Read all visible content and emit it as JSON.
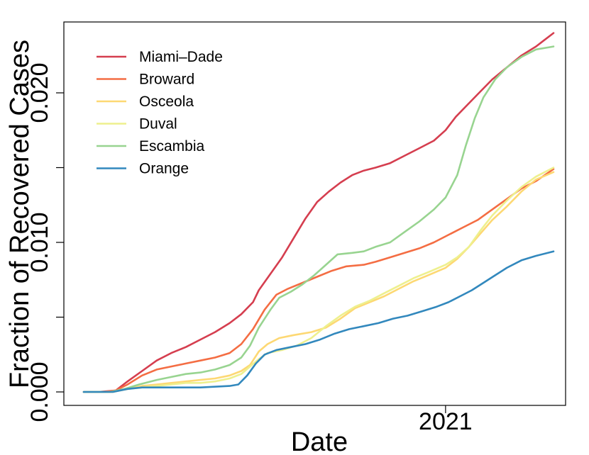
{
  "chart_data": {
    "type": "line",
    "xlabel": "Date",
    "ylabel": "Fraction of Recovered Cases",
    "x_tick_labels": [
      "2021"
    ],
    "y_tick_labels": [
      "0.000",
      "0.010",
      "0.020"
    ],
    "y_ticks": [
      0,
      0.005,
      0.01,
      0.015,
      0.02
    ],
    "x_axis_range_days": [
      0,
      322
    ],
    "x_2021_position_days": 248,
    "ylim": [
      -0.0009,
      0.0247
    ],
    "grid": false,
    "legend_position": "top-left",
    "series": [
      {
        "name": "Miami–Dade",
        "color": "#d53e4f",
        "points": [
          [
            0,
            0
          ],
          [
            10,
            0
          ],
          [
            22,
            0.0001
          ],
          [
            30,
            0.0007
          ],
          [
            40,
            0.0014
          ],
          [
            50,
            0.0021
          ],
          [
            60,
            0.0026
          ],
          [
            70,
            0.003
          ],
          [
            80,
            0.0035
          ],
          [
            90,
            0.004
          ],
          [
            100,
            0.0046
          ],
          [
            108,
            0.0052
          ],
          [
            116,
            0.006
          ],
          [
            120,
            0.0068
          ],
          [
            128,
            0.0079
          ],
          [
            136,
            0.009
          ],
          [
            144,
            0.0103
          ],
          [
            152,
            0.0116
          ],
          [
            160,
            0.0127
          ],
          [
            168,
            0.0134
          ],
          [
            176,
            0.014
          ],
          [
            184,
            0.0145
          ],
          [
            192,
            0.0148
          ],
          [
            200,
            0.015
          ],
          [
            210,
            0.0153
          ],
          [
            220,
            0.0158
          ],
          [
            230,
            0.0163
          ],
          [
            240,
            0.0168
          ],
          [
            248,
            0.0175
          ],
          [
            255,
            0.0184
          ],
          [
            263,
            0.0192
          ],
          [
            271,
            0.02
          ],
          [
            280,
            0.0209
          ],
          [
            290,
            0.0217
          ],
          [
            300,
            0.0225
          ],
          [
            310,
            0.0231
          ],
          [
            322,
            0.024
          ]
        ]
      },
      {
        "name": "Broward",
        "color": "#f46d43",
        "points": [
          [
            0,
            0
          ],
          [
            14,
            0
          ],
          [
            22,
            0.0001
          ],
          [
            30,
            0.0005
          ],
          [
            40,
            0.0011
          ],
          [
            50,
            0.0015
          ],
          [
            60,
            0.0017
          ],
          [
            70,
            0.0019
          ],
          [
            80,
            0.0021
          ],
          [
            90,
            0.0023
          ],
          [
            100,
            0.0026
          ],
          [
            108,
            0.0032
          ],
          [
            116,
            0.0042
          ],
          [
            124,
            0.0055
          ],
          [
            132,
            0.0065
          ],
          [
            140,
            0.0069
          ],
          [
            150,
            0.0073
          ],
          [
            160,
            0.0077
          ],
          [
            170,
            0.0081
          ],
          [
            180,
            0.0084
          ],
          [
            192,
            0.0085
          ],
          [
            200,
            0.0087
          ],
          [
            210,
            0.009
          ],
          [
            220,
            0.0093
          ],
          [
            230,
            0.0096
          ],
          [
            240,
            0.01
          ],
          [
            250,
            0.0105
          ],
          [
            260,
            0.011
          ],
          [
            270,
            0.0115
          ],
          [
            280,
            0.0122
          ],
          [
            290,
            0.0129
          ],
          [
            300,
            0.0136
          ],
          [
            310,
            0.0141
          ],
          [
            322,
            0.0149
          ]
        ]
      },
      {
        "name": "Osceola",
        "color": "#fdd873",
        "points": [
          [
            0,
            0
          ],
          [
            20,
            0
          ],
          [
            30,
            0.0002
          ],
          [
            40,
            0.0004
          ],
          [
            50,
            0.0005
          ],
          [
            60,
            0.0006
          ],
          [
            70,
            0.0007
          ],
          [
            80,
            0.0008
          ],
          [
            90,
            0.0009
          ],
          [
            100,
            0.0011
          ],
          [
            108,
            0.0014
          ],
          [
            114,
            0.0018
          ],
          [
            120,
            0.0027
          ],
          [
            126,
            0.0032
          ],
          [
            134,
            0.0036
          ],
          [
            144,
            0.0038
          ],
          [
            156,
            0.004
          ],
          [
            166,
            0.0043
          ],
          [
            176,
            0.0049
          ],
          [
            186,
            0.0056
          ],
          [
            196,
            0.006
          ],
          [
            206,
            0.0064
          ],
          [
            216,
            0.0069
          ],
          [
            226,
            0.0074
          ],
          [
            236,
            0.0078
          ],
          [
            248,
            0.0083
          ],
          [
            256,
            0.0089
          ],
          [
            264,
            0.0097
          ],
          [
            272,
            0.0106
          ],
          [
            280,
            0.0115
          ],
          [
            290,
            0.0124
          ],
          [
            300,
            0.0134
          ],
          [
            310,
            0.0142
          ],
          [
            322,
            0.0147
          ]
        ]
      },
      {
        "name": "Duval",
        "color": "#eef08e",
        "points": [
          [
            0,
            0
          ],
          [
            20,
            0
          ],
          [
            30,
            0.0002
          ],
          [
            40,
            0.0003
          ],
          [
            50,
            0.0004
          ],
          [
            60,
            0.0005
          ],
          [
            70,
            0.0006
          ],
          [
            80,
            0.0006
          ],
          [
            90,
            0.0007
          ],
          [
            100,
            0.0009
          ],
          [
            108,
            0.0012
          ],
          [
            114,
            0.0017
          ],
          [
            120,
            0.0022
          ],
          [
            126,
            0.0026
          ],
          [
            136,
            0.0028
          ],
          [
            146,
            0.0031
          ],
          [
            156,
            0.0036
          ],
          [
            166,
            0.0044
          ],
          [
            176,
            0.0051
          ],
          [
            186,
            0.0057
          ],
          [
            196,
            0.0061
          ],
          [
            206,
            0.0066
          ],
          [
            216,
            0.0071
          ],
          [
            226,
            0.0076
          ],
          [
            236,
            0.008
          ],
          [
            248,
            0.0085
          ],
          [
            256,
            0.009
          ],
          [
            264,
            0.0097
          ],
          [
            272,
            0.0108
          ],
          [
            280,
            0.0118
          ],
          [
            290,
            0.0128
          ],
          [
            300,
            0.0137
          ],
          [
            310,
            0.0144
          ],
          [
            322,
            0.015
          ]
        ]
      },
      {
        "name": "Escambia",
        "color": "#98d490",
        "points": [
          [
            0,
            0
          ],
          [
            18,
            0
          ],
          [
            28,
            0.0002
          ],
          [
            38,
            0.0005
          ],
          [
            50,
            0.0008
          ],
          [
            60,
            0.001
          ],
          [
            70,
            0.0012
          ],
          [
            80,
            0.0013
          ],
          [
            90,
            0.0015
          ],
          [
            100,
            0.0018
          ],
          [
            108,
            0.0023
          ],
          [
            114,
            0.0031
          ],
          [
            120,
            0.0043
          ],
          [
            128,
            0.0055
          ],
          [
            134,
            0.0063
          ],
          [
            142,
            0.0067
          ],
          [
            150,
            0.0072
          ],
          [
            158,
            0.0078
          ],
          [
            166,
            0.0085
          ],
          [
            174,
            0.0092
          ],
          [
            184,
            0.0093
          ],
          [
            192,
            0.0094
          ],
          [
            200,
            0.0097
          ],
          [
            210,
            0.01
          ],
          [
            220,
            0.0107
          ],
          [
            230,
            0.0114
          ],
          [
            240,
            0.0122
          ],
          [
            248,
            0.013
          ],
          [
            256,
            0.0145
          ],
          [
            262,
            0.0165
          ],
          [
            268,
            0.0183
          ],
          [
            274,
            0.0197
          ],
          [
            282,
            0.0209
          ],
          [
            290,
            0.0217
          ],
          [
            300,
            0.0224
          ],
          [
            310,
            0.0229
          ],
          [
            322,
            0.0231
          ]
        ]
      },
      {
        "name": "Orange",
        "color": "#3288bd",
        "points": [
          [
            0,
            0
          ],
          [
            20,
            0
          ],
          [
            30,
            0.0002
          ],
          [
            40,
            0.0003
          ],
          [
            60,
            0.0003
          ],
          [
            80,
            0.0003
          ],
          [
            100,
            0.0004
          ],
          [
            106,
            0.0005
          ],
          [
            112,
            0.0011
          ],
          [
            118,
            0.0019
          ],
          [
            124,
            0.0025
          ],
          [
            132,
            0.0028
          ],
          [
            142,
            0.003
          ],
          [
            152,
            0.0032
          ],
          [
            162,
            0.0035
          ],
          [
            172,
            0.0039
          ],
          [
            182,
            0.0042
          ],
          [
            192,
            0.0044
          ],
          [
            202,
            0.0046
          ],
          [
            212,
            0.0049
          ],
          [
            222,
            0.0051
          ],
          [
            232,
            0.0054
          ],
          [
            242,
            0.0057
          ],
          [
            250,
            0.006
          ],
          [
            258,
            0.0064
          ],
          [
            266,
            0.0068
          ],
          [
            274,
            0.0073
          ],
          [
            282,
            0.0078
          ],
          [
            290,
            0.0083
          ],
          [
            300,
            0.0088
          ],
          [
            310,
            0.0091
          ],
          [
            322,
            0.0094
          ]
        ]
      }
    ]
  }
}
